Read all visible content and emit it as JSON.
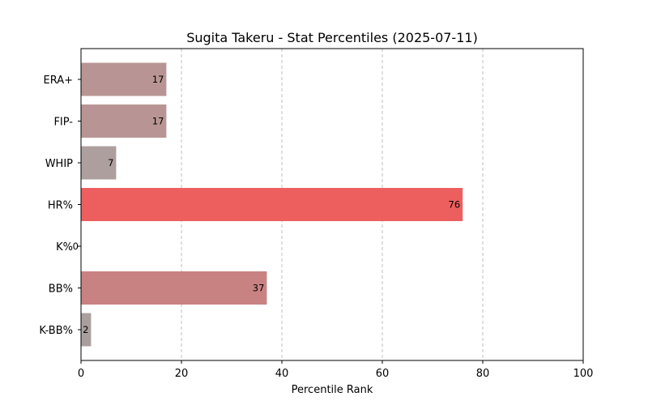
{
  "chart_data": {
    "type": "bar",
    "orientation": "horizontal",
    "title": "Sugita Takeru - Stat Percentiles (2025-07-11)",
    "xlabel": "Percentile Rank",
    "ylabel": "",
    "xlim": [
      0,
      100
    ],
    "xticks": [
      0,
      20,
      40,
      60,
      80,
      100
    ],
    "grid": "x",
    "categories": [
      "ERA+",
      "FIP-",
      "WHIP",
      "HR%",
      "K%",
      "BB%",
      "K-BB%"
    ],
    "values": [
      17,
      17,
      7,
      76,
      0,
      37,
      2
    ],
    "colors": [
      "#b89594",
      "#b89594",
      "#ae9f9f",
      "#ed5f5f",
      "#a8a8a8",
      "#c98282",
      "#aa9f9f"
    ]
  }
}
